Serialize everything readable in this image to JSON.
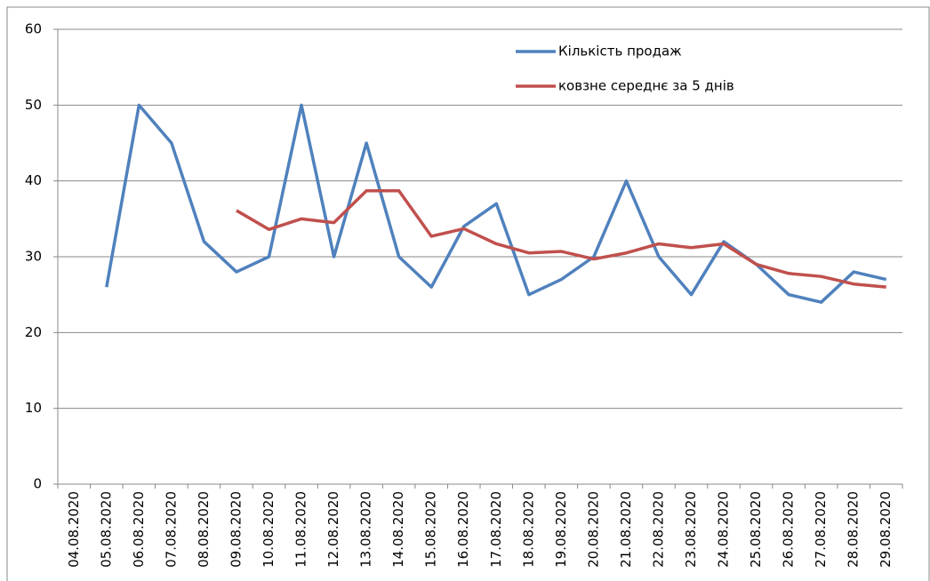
{
  "chart_data": {
    "type": "line",
    "categories": [
      "04.08.2020",
      "05.08.2020",
      "06.08.2020",
      "07.08.2020",
      "08.08.2020",
      "09.08.2020",
      "10.08.2020",
      "11.08.2020",
      "12.08.2020",
      "13.08.2020",
      "14.08.2020",
      "15.08.2020",
      "16.08.2020",
      "17.08.2020",
      "18.08.2020",
      "19.08.2020",
      "20.08.2020",
      "21.08.2020",
      "22.08.2020",
      "23.08.2020",
      "24.08.2020",
      "25.08.2020",
      "26.08.2020",
      "27.08.2020",
      "28.08.2020",
      "29.08.2020"
    ],
    "series": [
      {
        "name": "Кількість продаж",
        "color": "#4f81bd",
        "values": [
          null,
          26,
          50,
          45,
          32,
          28,
          30,
          50,
          30,
          45,
          30,
          26,
          34,
          37,
          25,
          27,
          30,
          40,
          30,
          25,
          32,
          29,
          25,
          24,
          28,
          27
        ]
      },
      {
        "name": "ковзне середнє за 5 днів",
        "color": "#c0504d",
        "values": [
          null,
          null,
          null,
          null,
          null,
          36.1,
          33.6,
          35,
          34.5,
          38.7,
          38.7,
          32.7,
          33.7,
          31.7,
          30.5,
          30.7,
          29.7,
          30.5,
          31.7,
          31.2,
          31.7,
          29,
          27.8,
          27.4,
          26.4,
          26
        ]
      }
    ],
    "ylim": [
      0,
      60
    ],
    "yticks": [
      0,
      10,
      20,
      30,
      40,
      50,
      60
    ],
    "grid": true,
    "legend": "top-right"
  }
}
